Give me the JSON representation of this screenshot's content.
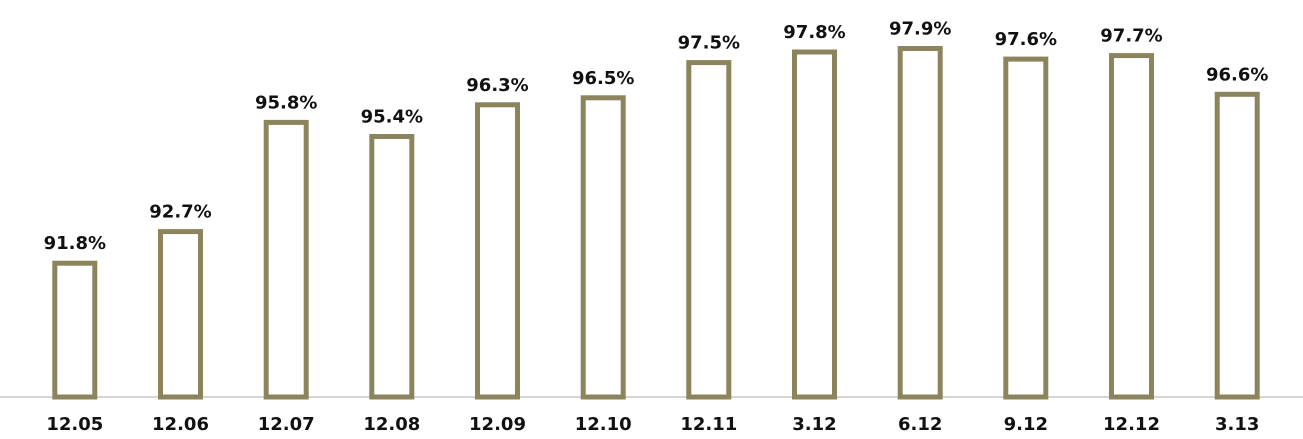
{
  "chart_data": {
    "type": "bar",
    "categories": [
      "12.05",
      "12.06",
      "12.07",
      "12.08",
      "12.09",
      "12.10",
      "12.11",
      "3.12",
      "6.12",
      "9.12",
      "12.12",
      "3.13"
    ],
    "values": [
      91.8,
      92.7,
      95.8,
      95.4,
      96.3,
      96.5,
      97.5,
      97.8,
      97.9,
      97.6,
      97.7,
      96.6
    ],
    "value_labels": [
      "91.8%",
      "92.7%",
      "95.8%",
      "95.4%",
      "96.3%",
      "96.5%",
      "97.5%",
      "97.8%",
      "97.9%",
      "97.6%",
      "97.7%",
      "96.6%"
    ],
    "title": "",
    "xlabel": "",
    "ylabel": "",
    "ylim": [
      88.0,
      98.0
    ],
    "grid": false,
    "colors": {
      "bar_outline": "#8b845c",
      "bar_fill": "#ffffff",
      "baseline": "#c9c9c9",
      "text": "#111111"
    }
  }
}
